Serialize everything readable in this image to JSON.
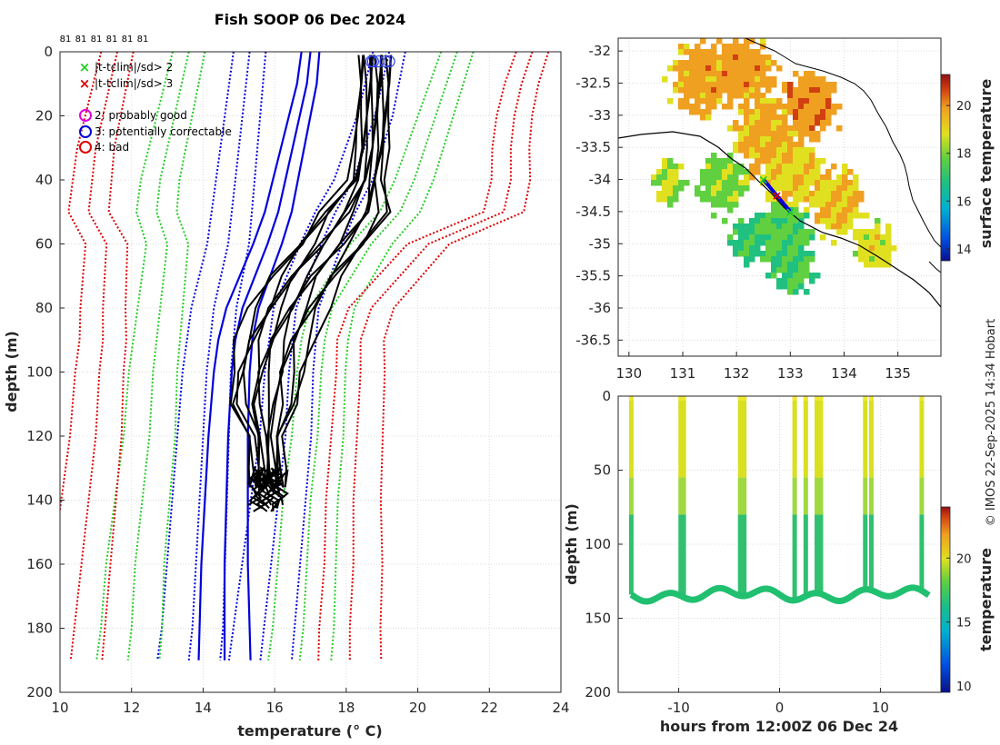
{
  "chart_data": [
    {
      "type": "line",
      "name": "temperature-profiles",
      "title": "Fish SOOP 06 Dec 2024",
      "top_counts": [
        "81",
        "81",
        "81",
        "81",
        "81",
        "81"
      ],
      "xlabel": "temperature (° C)",
      "ylabel": "depth (m)",
      "xlim": [
        10,
        24
      ],
      "ylim": [
        0,
        200
      ],
      "xticks": [
        "10",
        "12",
        "14",
        "16",
        "18",
        "20",
        "22",
        "24"
      ],
      "yticks": [
        "0",
        "20",
        "40",
        "60",
        "80",
        "100",
        "120",
        "140",
        "160",
        "180",
        "200"
      ],
      "legend": {
        "x2_label": "|t-tclim|/sd> 2",
        "x3_label": "|t-tclim|/sd> 3",
        "q2_label": "2: probably good",
        "q3_label": "3: potentially correctable",
        "q4_label": "4: bad",
        "x2_color": "#22cc22",
        "x3_color": "#dd0000",
        "q2_color": "#dd00dd",
        "q3_color": "#0000dd",
        "q4_color": "#dd0000"
      },
      "climatology": {
        "depth": [
          0,
          10,
          20,
          30,
          40,
          50,
          60,
          80,
          90,
          100,
          120,
          140,
          160,
          180,
          190
        ],
        "mean": [
          17.0,
          16.9,
          16.7,
          16.5,
          16.3,
          16.1,
          15.8,
          15.1,
          14.9,
          14.8,
          14.7,
          14.65,
          14.6,
          14.6,
          14.6
        ],
        "blue_lo": [
          15.3,
          15.2,
          15.1,
          15.0,
          14.9,
          14.8,
          14.7,
          14.3,
          14.2,
          14.1,
          14.0,
          13.9,
          13.8,
          13.7,
          13.6
        ],
        "blue_hi": [
          19.2,
          19.0,
          18.8,
          18.5,
          18.2,
          17.7,
          17.3,
          16.6,
          16.5,
          16.4,
          16.3,
          16.1,
          15.9,
          15.7,
          15.6
        ],
        "green_lo": [
          13.6,
          13.4,
          13.2,
          13.0,
          12.8,
          12.7,
          13.0,
          12.8,
          12.7,
          12.6,
          12.5,
          12.3,
          12.1,
          12.0,
          11.9
        ],
        "green_hi": [
          21.1,
          20.8,
          20.5,
          20.2,
          19.9,
          19.5,
          18.7,
          17.6,
          17.4,
          17.3,
          17.2,
          17.0,
          16.9,
          16.8,
          16.7
        ],
        "red_lo": [
          11.6,
          11.4,
          11.2,
          11.0,
          10.9,
          10.8,
          11.3,
          11.2,
          11.2,
          11.1,
          11.0,
          10.8,
          10.6,
          10.4,
          10.3
        ],
        "red_hi": [
          23.2,
          22.9,
          22.7,
          22.6,
          22.6,
          22.4,
          20.3,
          18.7,
          18.4,
          18.4,
          18.3,
          18.2,
          18.2,
          18.1,
          18.1
        ]
      },
      "profiles_rendered": [
        {
          "name": "profile-mean",
          "depth": [
            1,
            10,
            20,
            30,
            40,
            50,
            60,
            70,
            80,
            90,
            100,
            110,
            120,
            130,
            136
          ],
          "temp": [
            18.8,
            18.8,
            18.75,
            18.7,
            18.55,
            18.2,
            17.6,
            16.9,
            16.4,
            16.0,
            15.8,
            15.7,
            15.75,
            15.8,
            15.8
          ]
        }
      ],
      "qc_circles": [
        18.7,
        18.75,
        18.9,
        19.1,
        19.2
      ]
    },
    {
      "type": "heatmap",
      "name": "surface-temperature-map",
      "xticks": [
        "130",
        "131",
        "132",
        "133",
        "134",
        "135"
      ],
      "yticks": [
        "-32",
        "-32.5",
        "-33",
        "-33.5",
        "-34",
        "-34.5",
        "-35",
        "-35.5",
        "-36",
        "-36.5"
      ],
      "xlim": [
        129.8,
        135.8
      ],
      "ylim": [
        -36.75,
        -31.8
      ],
      "colorbar_label": "surface temperature",
      "colorbar_ticks": [
        "14",
        "16",
        "18",
        "20"
      ],
      "colorbar_range": [
        13.5,
        21.3
      ],
      "track": [
        [
          132.5,
          -34.0
        ],
        [
          132.75,
          -34.25
        ],
        [
          133.0,
          -34.5
        ]
      ]
    },
    {
      "type": "scatter",
      "name": "depth-time-section",
      "xlabel": "hours from 12:00Z 06 Dec 24",
      "ylabel": "depth (m)",
      "xlim": [
        -16,
        16
      ],
      "ylim": [
        0,
        200
      ],
      "xticks": [
        "-10",
        "0",
        "10"
      ],
      "yticks": [
        "0",
        "50",
        "100",
        "150",
        "200"
      ],
      "colorbar_label": "temperature",
      "colorbar_ticks": [
        "10",
        "15",
        "20"
      ],
      "colorbar_range": [
        9.5,
        24
      ],
      "cast_hours": [
        -14.7,
        -9.8,
        -9.5,
        -3.9,
        -3.5,
        1.5,
        2.6,
        3.7,
        4.1,
        8.5,
        9.1,
        14.1
      ]
    }
  ],
  "footer": {
    "credit": "© IMOS 22-Sep-2025 14:34 Hobart"
  }
}
